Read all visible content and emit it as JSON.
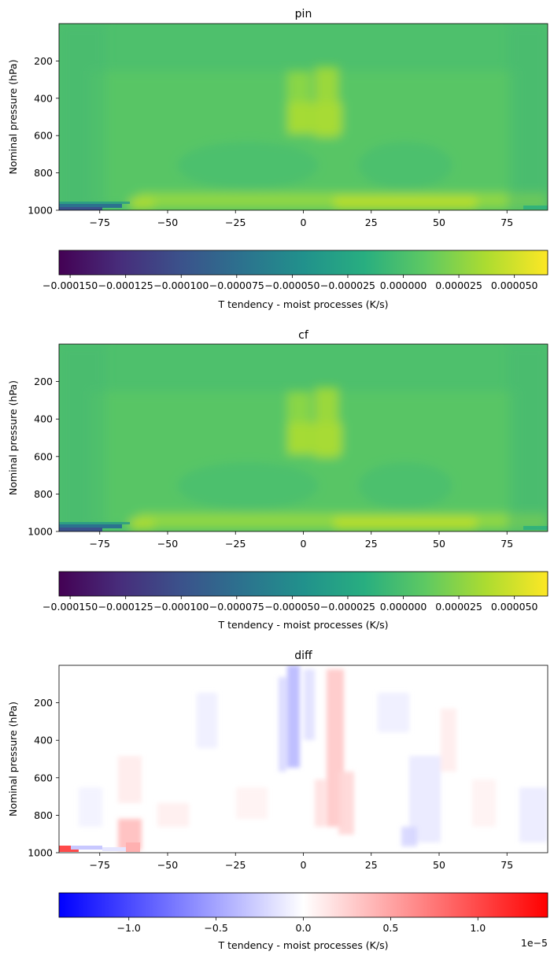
{
  "chart_data": [
    {
      "type": "heatmap",
      "title": "pin",
      "xlabel": "",
      "ylabel": "Nominal pressure (hPa)",
      "xlim": [
        -90,
        90
      ],
      "ylim": [
        1000,
        0
      ],
      "xticks": [
        -75,
        -50,
        -25,
        0,
        25,
        50,
        75
      ],
      "xtick_labels": [
        "−75",
        "−50",
        "−25",
        "0",
        "25",
        "50",
        "75"
      ],
      "yticks": [
        200,
        400,
        600,
        800,
        1000
      ],
      "ytick_labels": [
        "200",
        "400",
        "600",
        "800",
        "1000"
      ],
      "colormap": "viridis",
      "colorbar": {
        "label": "T tendency - moist processes (K/s)",
        "range": [
          -0.000155,
          6.5e-05
        ],
        "ticks": [
          -0.00015,
          -0.000125,
          -0.0001,
          -7.5e-05,
          -5e-05,
          -2.5e-05,
          0.0,
          2.5e-05,
          5e-05
        ],
        "tick_labels": [
          "−0.000150",
          "−0.000125",
          "−0.000100",
          "−0.000075",
          "−0.000050",
          "−0.000025",
          "0.000000",
          "0.000025",
          "0.000050"
        ],
        "orientation": "horizontal"
      }
    },
    {
      "type": "heatmap",
      "title": "cf",
      "xlabel": "",
      "ylabel": "Nominal pressure (hPa)",
      "xlim": [
        -90,
        90
      ],
      "ylim": [
        1000,
        0
      ],
      "xticks": [
        -75,
        -50,
        -25,
        0,
        25,
        50,
        75
      ],
      "xtick_labels": [
        "−75",
        "−50",
        "−25",
        "0",
        "25",
        "50",
        "75"
      ],
      "yticks": [
        200,
        400,
        600,
        800,
        1000
      ],
      "ytick_labels": [
        "200",
        "400",
        "600",
        "800",
        "1000"
      ],
      "colormap": "viridis",
      "colorbar": {
        "label": "T tendency - moist processes (K/s)",
        "range": [
          -0.000155,
          6.5e-05
        ],
        "ticks": [
          -0.00015,
          -0.000125,
          -0.0001,
          -7.5e-05,
          -5e-05,
          -2.5e-05,
          0.0,
          2.5e-05,
          5e-05
        ],
        "tick_labels": [
          "−0.000150",
          "−0.000125",
          "−0.000100",
          "−0.000075",
          "−0.000050",
          "−0.000025",
          "0.000000",
          "0.000025",
          "0.000050"
        ],
        "orientation": "horizontal"
      }
    },
    {
      "type": "heatmap",
      "title": "diff",
      "xlabel": "",
      "ylabel": "Nominal pressure (hPa)",
      "xlim": [
        -90,
        90
      ],
      "ylim": [
        1000,
        0
      ],
      "xticks": [
        -75,
        -50,
        -25,
        0,
        25,
        50,
        75
      ],
      "xtick_labels": [
        "−75",
        "−50",
        "−25",
        "0",
        "25",
        "50",
        "75"
      ],
      "yticks": [
        200,
        400,
        600,
        800,
        1000
      ],
      "ytick_labels": [
        "200",
        "400",
        "600",
        "800",
        "1000"
      ],
      "colormap": "bwr",
      "colorbar": {
        "label": "T tendency - moist processes (K/s)",
        "range": [
          -1.4,
          1.4
        ],
        "ticks": [
          -1.0,
          -0.5,
          0.0,
          0.5,
          1.0
        ],
        "tick_labels": [
          "−1.0",
          "−0.5",
          "0.0",
          "0.5",
          "1.0"
        ],
        "offset_text": "1e−5",
        "orientation": "horizontal"
      }
    }
  ]
}
